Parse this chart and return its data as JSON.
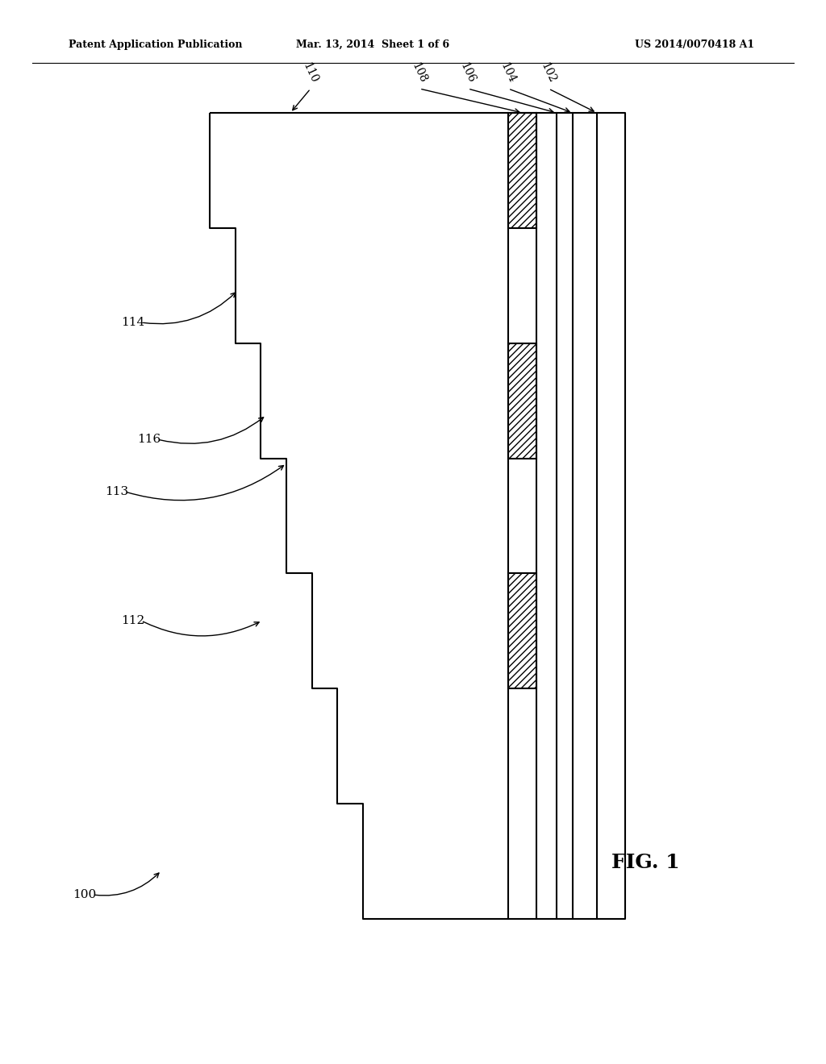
{
  "header_left": "Patent Application Publication",
  "header_center": "Mar. 13, 2014  Sheet 1 of 6",
  "header_right": "US 2014/0070418 A1",
  "fig_label": "FIG. 1",
  "bg_color": "#ffffff",
  "line_color": "#000000",
  "hatch_color": "#000000",
  "labels_top": [
    "110",
    "108",
    "106",
    "104",
    "102"
  ],
  "labels_side": [
    "114",
    "116",
    "113",
    "112",
    "100"
  ]
}
